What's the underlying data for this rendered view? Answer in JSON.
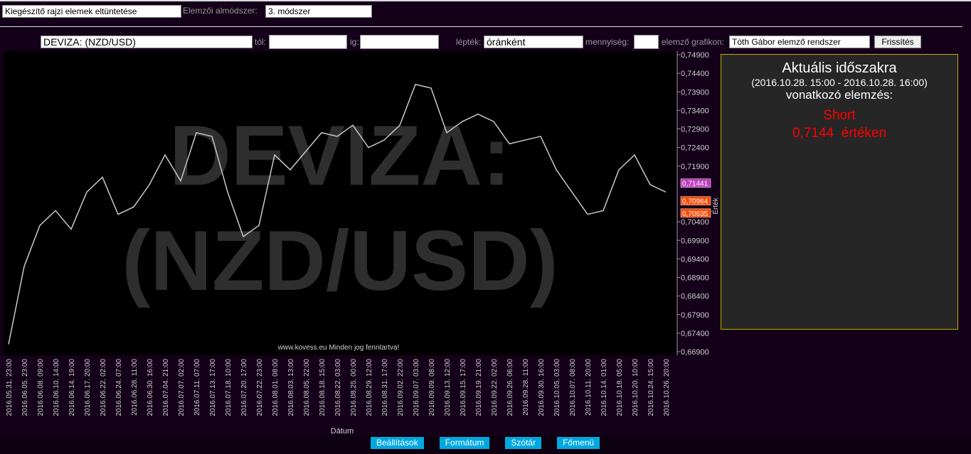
{
  "toolbar": {
    "drawing_select": "Kiegészítő rajzi elemek eltüntetése",
    "method_label": "Elemzői almódszer:",
    "method_select": "3. módszer"
  },
  "filters": {
    "instrument": "DEVIZA: (NZD/USD)",
    "from_label": "tól:",
    "to_label": "ig:",
    "step_label": "lépték:",
    "step_select": "óránként",
    "amount_label": "mennyiség:",
    "chart_label": "elemző grafikon:",
    "chart_select": "Tóth Gábor elemző rendszer",
    "refresh": "Frissítés"
  },
  "chart_data": {
    "type": "line",
    "watermark_line1": "DEVIZA:",
    "watermark_line2": "(NZD/USD)",
    "credit": "www.kovess.eu Minden jog fenntartva!",
    "x_label": "Dátum",
    "y_label": "Érték",
    "categories": [
      "2016.05.31. 23:00",
      "2016.06.05. 23:00",
      "2016.06.08. 09:00",
      "2016.06.10. 14:00",
      "2016.06.14. 19:00",
      "2016.06.17. 20:00",
      "2016.06.22. 02:00",
      "2016.06.24. 07:00",
      "2016.06.28. 11:00",
      "2016.06.30. 16:00",
      "2016.07.04. 21:00",
      "2016.07.07. 02:00",
      "2016.07.11. 07:00",
      "2016.07.13. 17:00",
      "2016.07.18. 10:00",
      "2016.07.20. 17:00",
      "2016.07.22. 23:00",
      "2016.08.01. 08:00",
      "2016.08.03. 13:00",
      "2016.08.05. 22:00",
      "2016.08.18. 15:00",
      "2016.08.22. 03:00",
      "2016.08.25. 00:00",
      "2016.08.29. 12:00",
      "2016.08.31. 17:00",
      "2016.09.02. 22:00",
      "2016.09.07. 03:00",
      "2016.09.09. 08:00",
      "2016.09.13. 12:00",
      "2016.09.15. 17:00",
      "2016.09.19. 21:00",
      "2016.09.22. 02:00",
      "2016.09.26. 06:00",
      "2016.09.28. 11:00",
      "2016.09.30. 16:00",
      "2016.10.05. 03:00",
      "2016.10.07. 08:00",
      "2016.10.11. 20:00",
      "2016.10.14. 01:00",
      "2016.10.18. 05:00",
      "2016.10.20. 10:00",
      "2016.10.24. 15:00",
      "2016.10.26. 20:00"
    ],
    "series": [
      {
        "color": "#c8c8c8",
        "values": [
          0.671,
          0.692,
          0.703,
          0.707,
          0.702,
          0.712,
          0.716,
          0.706,
          0.708,
          0.714,
          0.722,
          0.715,
          0.728,
          0.727,
          0.712,
          0.7,
          0.703,
          0.722,
          0.718,
          0.723,
          0.728,
          0.727,
          0.73,
          0.724,
          0.726,
          0.73,
          0.741,
          0.74,
          0.728,
          0.731,
          0.733,
          0.731,
          0.725,
          0.726,
          0.727,
          0.718,
          0.712,
          0.706,
          0.707,
          0.718,
          0.722,
          0.714,
          0.712
        ]
      }
    ],
    "ylim": [
      0.669,
      0.749
    ],
    "yticks": [
      {
        "value": 0.749,
        "label": "0,74900"
      },
      {
        "value": 0.744,
        "label": "0,74400"
      },
      {
        "value": 0.739,
        "label": "0,73900"
      },
      {
        "value": 0.734,
        "label": "0,73400"
      },
      {
        "value": 0.729,
        "label": "0,72900"
      },
      {
        "value": 0.724,
        "label": "0,72400"
      },
      {
        "value": 0.719,
        "label": "0,71900"
      },
      {
        "value": 0.704,
        "label": "0,70400"
      },
      {
        "value": 0.699,
        "label": "0,69900"
      },
      {
        "value": 0.694,
        "label": "0,69400"
      },
      {
        "value": 0.689,
        "label": "0,68900"
      },
      {
        "value": 0.684,
        "label": "0,68400"
      },
      {
        "value": 0.679,
        "label": "0,67900"
      },
      {
        "value": 0.674,
        "label": "0,67400"
      },
      {
        "value": 0.669,
        "label": "0,66900"
      }
    ],
    "price_markers": [
      {
        "value": 0.71441,
        "label": "0,71441",
        "color": "#c03cc0"
      },
      {
        "value": 0.70964,
        "label": "0,70964",
        "color": "#ff4a00"
      },
      {
        "value": 0.70635,
        "label": "0,70635",
        "color": "#ff4a00"
      }
    ]
  },
  "panel": {
    "title": "Aktuális időszakra",
    "period": "(2016.10.28. 15:00 - 2016.10.28. 16:00)",
    "subtitle": "vonatkozó elemzés:",
    "signal": "Short",
    "price": "0,7144  értéken"
  },
  "footer": {
    "buttons": [
      "Beállítások",
      "Formátum",
      "Szótár",
      "Főmenü"
    ]
  }
}
